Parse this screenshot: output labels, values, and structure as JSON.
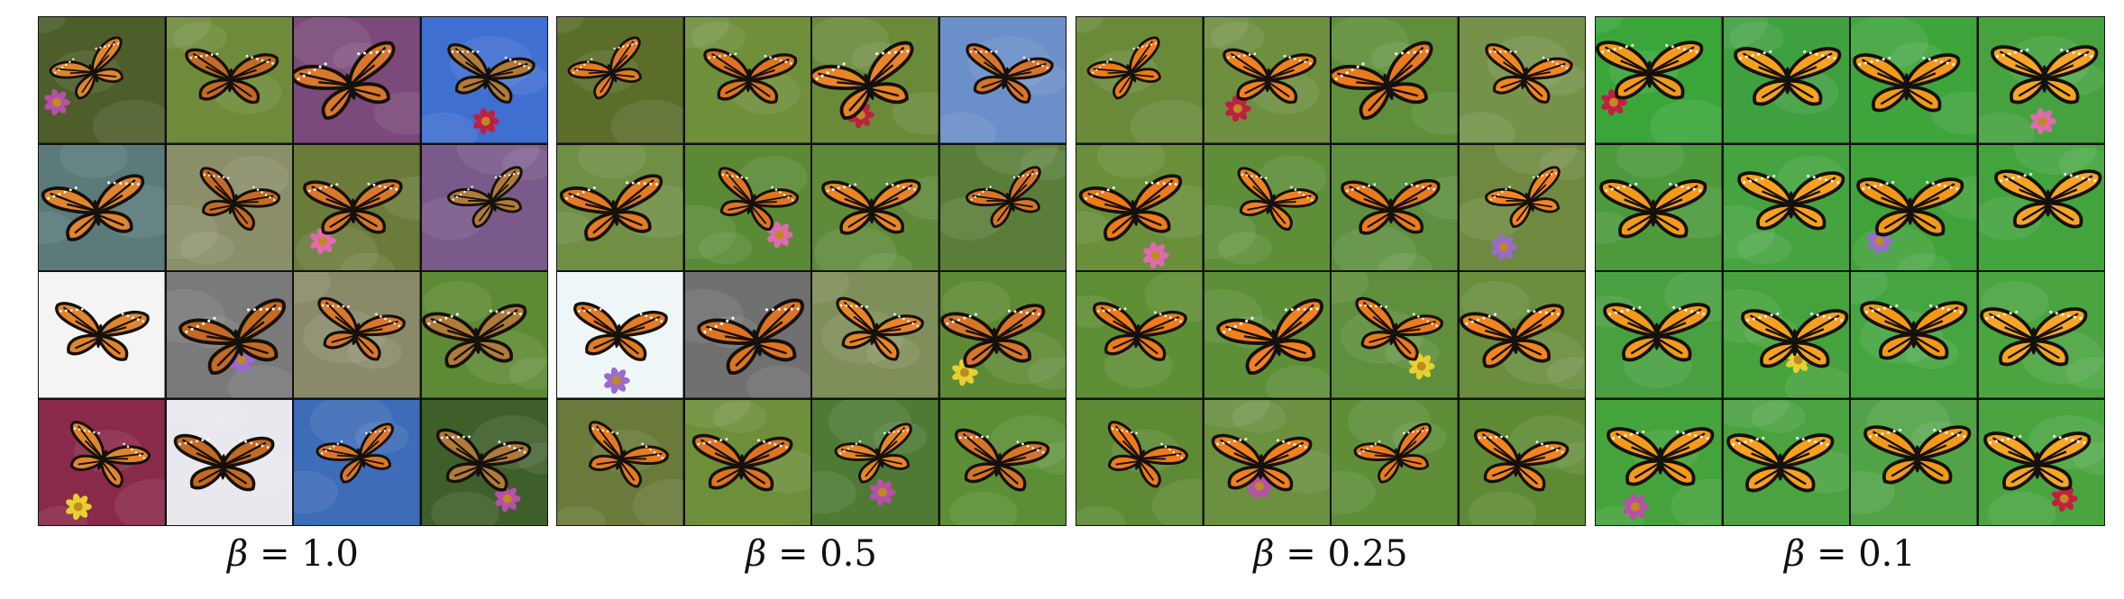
{
  "panels": [
    {
      "beta_symbol": "β",
      "equals": "=",
      "value": "1.0"
    },
    {
      "beta_symbol": "β",
      "equals": "=",
      "value": "0.5"
    },
    {
      "beta_symbol": "β",
      "equals": "=",
      "value": "0.25"
    },
    {
      "beta_symbol": "β",
      "equals": "=",
      "value": "0.1"
    }
  ],
  "colors": {
    "wing_orange": "#e8771f",
    "wing_vein": "#141008",
    "border": "#111111"
  }
}
